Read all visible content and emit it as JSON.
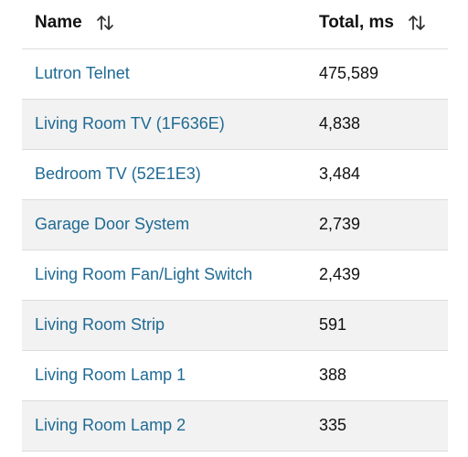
{
  "table": {
    "columns": [
      {
        "label": "Name",
        "sort_icon": "sort-arrows-icon"
      },
      {
        "label": "Total, ms",
        "sort_icon": "sort-arrows-icon"
      }
    ],
    "rows": [
      {
        "name": "Lutron Telnet",
        "total": "475,589"
      },
      {
        "name": "Living Room TV (1F636E)",
        "total": "4,838"
      },
      {
        "name": "Bedroom TV (52E1E3)",
        "total": "3,484"
      },
      {
        "name": "Garage Door System",
        "total": "2,739"
      },
      {
        "name": "Living Room Fan/Light Switch",
        "total": "2,439"
      },
      {
        "name": "Living Room Strip",
        "total": "591"
      },
      {
        "name": "Living Room Lamp 1",
        "total": "388"
      },
      {
        "name": "Living Room Lamp 2",
        "total": "335"
      }
    ]
  },
  "colors": {
    "link": "#1f6a94",
    "text": "#111111",
    "alt_row": "#f2f2f2",
    "divider": "#dcdcdc"
  }
}
